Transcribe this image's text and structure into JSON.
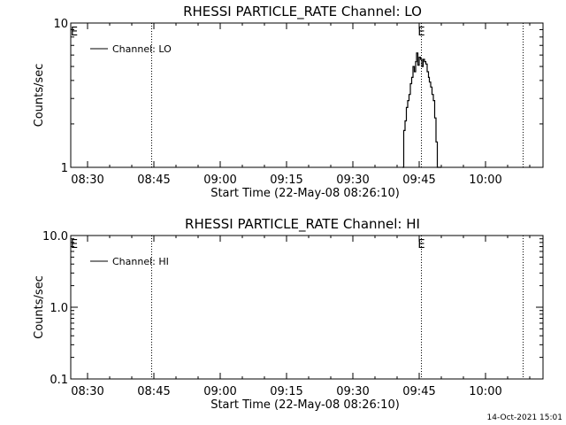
{
  "footer_timestamp": "14-Oct-2021 15:01",
  "chart_data": [
    {
      "type": "line",
      "title": "RHESSI PARTICLE_RATE Channel: LO",
      "xlabel": "Start Time (22-May-08 08:26:10)",
      "ylabel": "Counts/sec",
      "y_scale": "log",
      "ylim": [
        1,
        10
      ],
      "y_ticks": [
        "1",
        "10"
      ],
      "x_tick_labels": [
        "08:30",
        "08:45",
        "09:00",
        "09:15",
        "09:30",
        "09:45",
        "10:00"
      ],
      "x_tick_minutes": [
        30,
        45,
        60,
        75,
        90,
        105,
        120
      ],
      "xlim_minutes": [
        26.2,
        133.0
      ],
      "markers": [
        {
          "label": "E",
          "x_minute": 25.0
        },
        {
          "label": "E",
          "x_minute": 105.5
        }
      ],
      "vertical_lines_minutes": [
        44.5,
        105.5,
        128.5
      ],
      "legend": {
        "position": "top-left",
        "entries": [
          "Channel: LO"
        ]
      },
      "series": [
        {
          "name": "Channel: LO",
          "x_minutes": [
            101.2,
            101.5,
            101.8,
            102.1,
            102.4,
            102.7,
            103.0,
            103.3,
            103.6,
            103.9,
            104.2,
            104.4,
            104.7,
            105.0,
            105.3,
            105.6,
            105.9,
            106.2,
            106.5,
            106.8,
            107.1,
            107.3,
            107.6,
            107.9,
            108.2,
            108.5,
            108.8,
            109.1,
            109.4,
            109.7,
            110.0
          ],
          "values": [
            1.0,
            1.8,
            2.1,
            2.6,
            2.9,
            3.2,
            3.8,
            4.2,
            5.0,
            4.6,
            5.4,
            6.2,
            5.1,
            5.8,
            5.6,
            5.0,
            5.6,
            5.4,
            5.2,
            4.6,
            4.2,
            3.9,
            3.6,
            3.2,
            2.9,
            2.2,
            1.5,
            1.0,
            1.0,
            1.0,
            1.0
          ]
        }
      ]
    },
    {
      "type": "line",
      "title": "RHESSI PARTICLE_RATE Channel: HI",
      "xlabel": "Start Time (22-May-08 08:26:10)",
      "ylabel": "Counts/sec",
      "y_scale": "log",
      "ylim": [
        0.1,
        10
      ],
      "y_ticks": [
        "0.1",
        "1.0",
        "10.0"
      ],
      "x_tick_labels": [
        "08:30",
        "08:45",
        "09:00",
        "09:15",
        "09:30",
        "09:45",
        "10:00"
      ],
      "x_tick_minutes": [
        30,
        45,
        60,
        75,
        90,
        105,
        120
      ],
      "xlim_minutes": [
        26.2,
        133.0
      ],
      "markers": [
        {
          "label": "E",
          "x_minute": 25.0
        },
        {
          "label": "E",
          "x_minute": 105.5
        }
      ],
      "vertical_lines_minutes": [
        44.5,
        105.5,
        128.5
      ],
      "legend": {
        "position": "top-left",
        "entries": [
          "Channel: HI"
        ]
      },
      "series": [
        {
          "name": "Channel: HI",
          "x_minutes": [],
          "values": []
        }
      ]
    }
  ]
}
